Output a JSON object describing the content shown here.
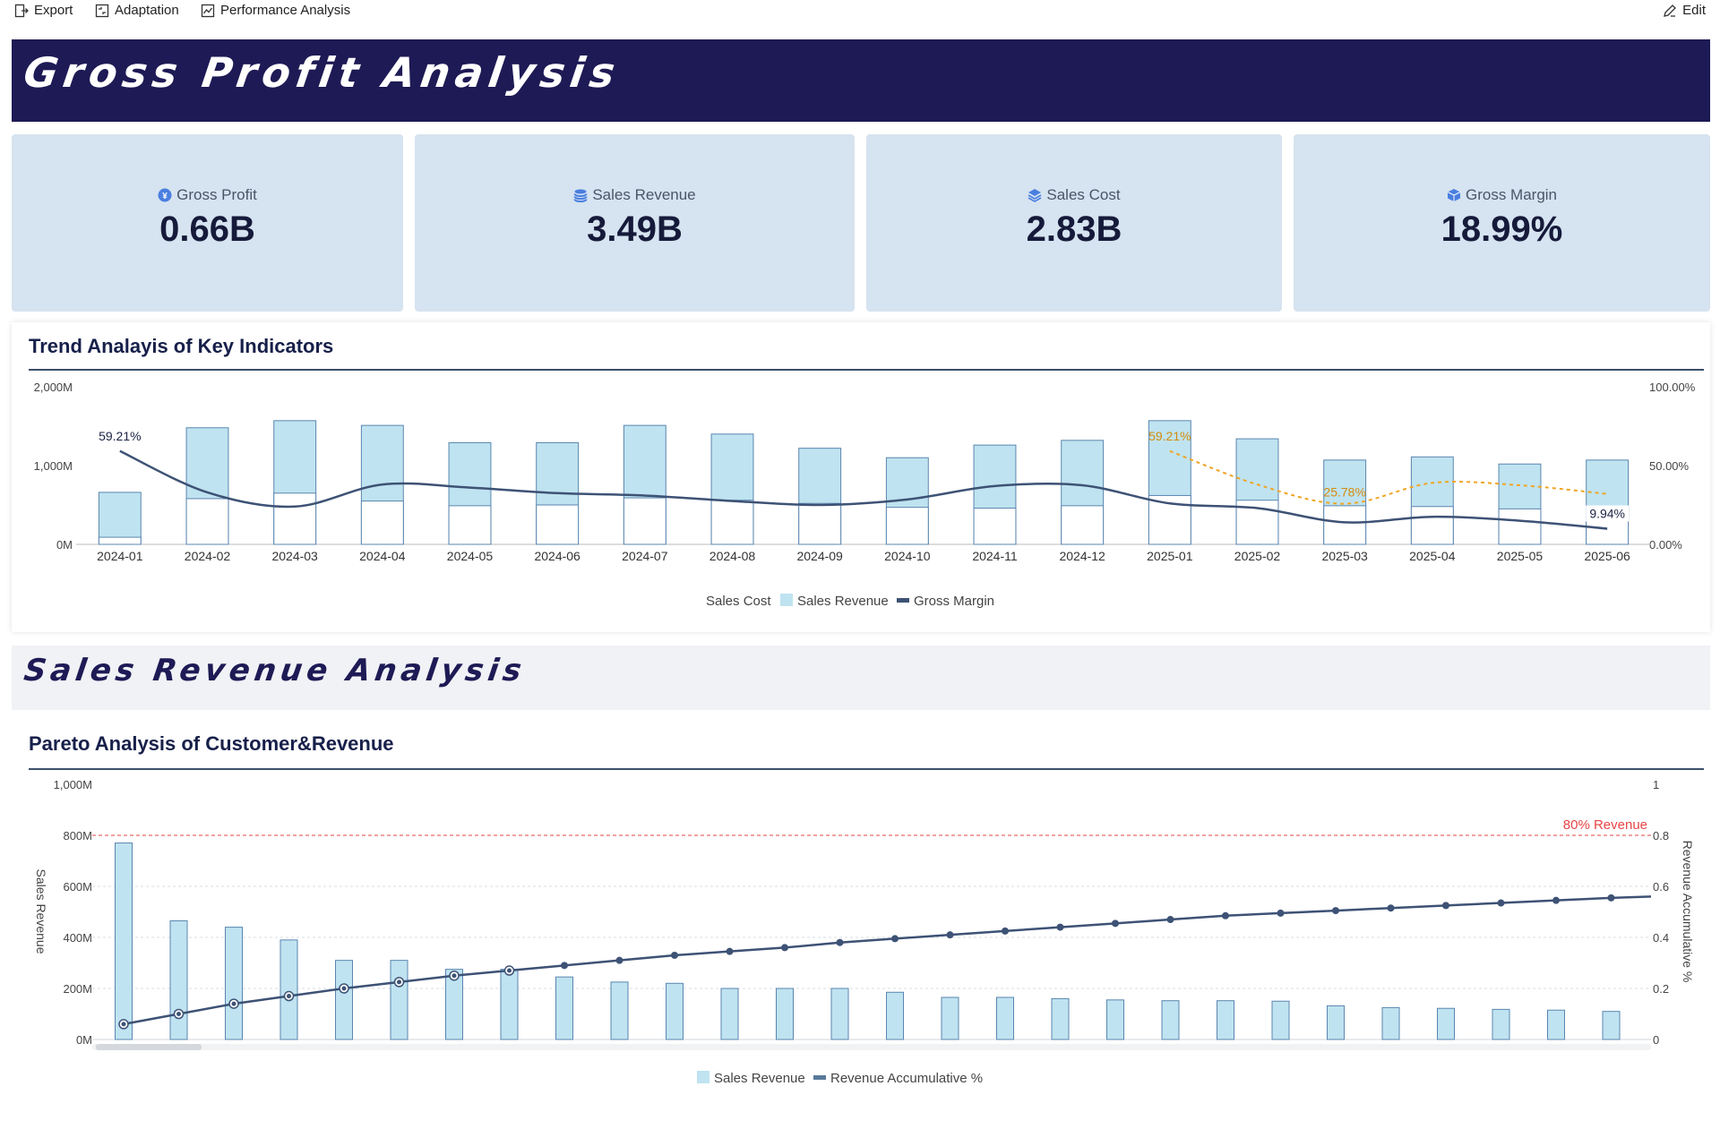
{
  "toolbar": {
    "export_label": "Export",
    "adaptation_label": "Adaptation",
    "performance_label": "Performance Analysis",
    "edit_label": "Edit"
  },
  "banner": {
    "title": "Gross Profit Analysis"
  },
  "kpis": [
    {
      "label": "Gross Profit",
      "value": "0.66B",
      "icon": "currency-icon"
    },
    {
      "label": "Sales Revenue",
      "value": "3.49B",
      "icon": "coins-icon"
    },
    {
      "label": "Sales Cost",
      "value": "2.83B",
      "icon": "layers-icon"
    },
    {
      "label": "Gross Margin",
      "value": "18.99%",
      "icon": "box-icon"
    }
  ],
  "trend": {
    "title": "Trend Analayis of Key Indicators"
  },
  "section2": {
    "title": "Sales Revenue Analysis"
  },
  "pareto": {
    "title": "Pareto Analysis of Customer&Revenue"
  },
  "colors": {
    "banner": "#1e1a55",
    "kpi_bg": "#d6e3f0",
    "bar_fill": "#bfe3f0",
    "bar_stroke": "#5a86b0",
    "line": "#3d5275",
    "forecast": "#f0a523",
    "threshold": "#e64545"
  },
  "chart_data": [
    {
      "type": "bar",
      "title": "Trend Analayis of Key Indicators",
      "categories": [
        "2024-01",
        "2024-02",
        "2024-03",
        "2024-04",
        "2024-05",
        "2024-06",
        "2024-07",
        "2024-08",
        "2024-09",
        "2024-10",
        "2024-11",
        "2024-12",
        "2025-01",
        "2025-02",
        "2025-03",
        "2025-04",
        "2025-05",
        "2025-06"
      ],
      "series": [
        {
          "name": "Sales Cost",
          "values": [
            90,
            580,
            650,
            550,
            490,
            500,
            590,
            560,
            520,
            470,
            460,
            490,
            620,
            560,
            490,
            480,
            450,
            480
          ]
        },
        {
          "name": "Sales Revenue",
          "values": [
            660,
            1480,
            1570,
            1510,
            1290,
            1290,
            1510,
            1400,
            1220,
            1100,
            1260,
            1320,
            1570,
            1340,
            1070,
            1110,
            1020,
            1070
          ]
        },
        {
          "name": "Gross Margin",
          "values": [
            59.21,
            33,
            24,
            38,
            36,
            32.5,
            31,
            27.5,
            25,
            28.5,
            37,
            37.5,
            26,
            23,
            14,
            17.5,
            15,
            9.94
          ]
        }
      ],
      "forecast": {
        "name": "Gross Margin",
        "values": [
          null,
          null,
          null,
          null,
          null,
          null,
          null,
          null,
          null,
          null,
          null,
          null,
          59.21,
          38,
          25.78,
          39,
          37.5,
          32
        ]
      },
      "labels": [
        "59.21%",
        "59.21%",
        "25.78%",
        "9.94%"
      ],
      "ylim_left": [
        0,
        2000
      ],
      "ylim_right": [
        0,
        100
      ],
      "yticks_left": [
        "0M",
        "1,000M",
        "2,000M"
      ],
      "yticks_right": [
        "0.00%",
        "50.00%",
        "100.00%"
      ],
      "legend": "bottom"
    },
    {
      "type": "bar",
      "title": "Pareto Analysis of Customer&Revenue",
      "ylabel": "Sales Revenue",
      "ylabel_right": "Revenue Accumulative %",
      "series": [
        {
          "name": "Sales Revenue",
          "values": [
            770,
            465,
            440,
            390,
            310,
            310,
            275,
            275,
            245,
            225,
            220,
            200,
            200,
            200,
            185,
            165,
            165,
            160,
            155,
            152,
            152,
            150,
            132,
            125,
            122,
            118,
            115,
            110
          ]
        },
        {
          "name": "Revenue Accumulative %",
          "values": [
            0.06,
            0.1,
            0.14,
            0.17,
            0.2,
            0.225,
            0.25,
            0.27,
            0.29,
            0.31,
            0.33,
            0.345,
            0.36,
            0.38,
            0.395,
            0.41,
            0.425,
            0.44,
            0.455,
            0.47,
            0.485,
            0.495,
            0.505,
            0.515,
            0.525,
            0.535,
            0.545,
            0.555
          ]
        }
      ],
      "threshold": {
        "label": "80% Revenue",
        "value": 0.8
      },
      "ylim_left": [
        0,
        1000
      ],
      "ylim_right": [
        0,
        1
      ],
      "yticks_left": [
        "0M",
        "200M",
        "400M",
        "600M",
        "800M",
        "1,000M"
      ],
      "yticks_right": [
        "0",
        "0.2",
        "0.4",
        "0.6",
        "0.8",
        "1"
      ],
      "legend": "bottom"
    }
  ]
}
